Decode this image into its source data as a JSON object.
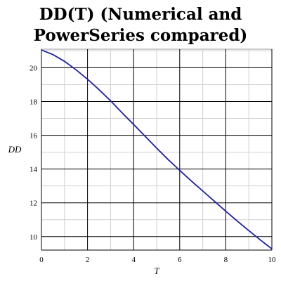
{
  "chart_data": {
    "type": "line",
    "title_lines": [
      "DD(T) (Numerical and",
      "PowerSeries compared)"
    ],
    "xlabel": "T",
    "ylabel": "DD",
    "xlim": [
      0,
      10
    ],
    "ylim": [
      9.2,
      21.1
    ],
    "x_ticks": [
      0,
      2,
      4,
      6,
      8,
      10
    ],
    "y_ticks": [
      10,
      12,
      14,
      16,
      18,
      20
    ],
    "grid": true,
    "series": [
      {
        "color": "#1f1fa8",
        "x": [
          0,
          0.5,
          1,
          1.5,
          2,
          2.5,
          3,
          3.5,
          4,
          4.5,
          5,
          5.5,
          6,
          6.5,
          7,
          7.5,
          8,
          8.5,
          9,
          9.5,
          10
        ],
        "y": [
          21.05,
          20.78,
          20.38,
          19.88,
          19.32,
          18.7,
          18.04,
          17.33,
          16.64,
          15.94,
          15.24,
          14.56,
          13.92,
          13.3,
          12.7,
          12.1,
          11.5,
          10.92,
          10.35,
          9.8,
          9.27
        ]
      }
    ]
  }
}
